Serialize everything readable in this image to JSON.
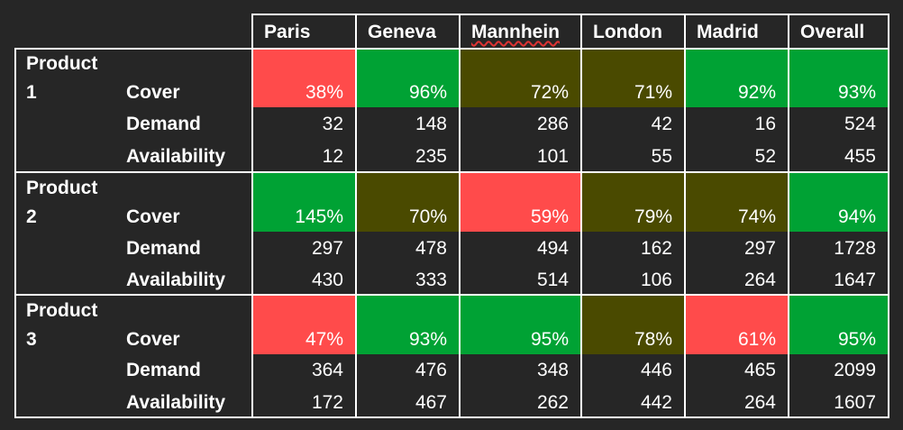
{
  "header": [
    "Paris",
    "Geneva",
    "Mannhein",
    "London",
    "Madrid",
    "Overall"
  ],
  "colors": {
    "red": "#ff4b4b",
    "green": "#00a234",
    "olive": "#4a4a00",
    "dark": "#262626"
  },
  "groups": [
    {
      "product_line1": "Product",
      "product_line2": "1",
      "metrics": [
        {
          "label": "Cover",
          "values": [
            "38%",
            "96%",
            "72%",
            "71%",
            "92%",
            "93%"
          ],
          "status": [
            "red",
            "green",
            "olive",
            "olive",
            "green",
            "green"
          ]
        },
        {
          "label": "Demand",
          "values": [
            "32",
            "148",
            "286",
            "42",
            "16",
            "524"
          ]
        },
        {
          "label": "Availability",
          "values": [
            "12",
            "235",
            "101",
            "55",
            "52",
            "455"
          ]
        }
      ]
    },
    {
      "product_line1": "Product",
      "product_line2": "2",
      "metrics": [
        {
          "label": "Cover",
          "values": [
            "145%",
            "70%",
            "59%",
            "79%",
            "74%",
            "94%"
          ],
          "status": [
            "green",
            "olive",
            "red",
            "olive",
            "olive",
            "green"
          ]
        },
        {
          "label": "Demand",
          "values": [
            "297",
            "478",
            "494",
            "162",
            "297",
            "1728"
          ]
        },
        {
          "label": "Availability",
          "values": [
            "430",
            "333",
            "514",
            "106",
            "264",
            "1647"
          ]
        }
      ]
    },
    {
      "product_line1": "Product",
      "product_line2": "3",
      "metrics": [
        {
          "label": "Cover",
          "values": [
            "47%",
            "93%",
            "95%",
            "78%",
            "61%",
            "95%"
          ],
          "status": [
            "red",
            "green",
            "green",
            "olive",
            "red",
            "green"
          ]
        },
        {
          "label": "Demand",
          "values": [
            "364",
            "476",
            "348",
            "446",
            "465",
            "2099"
          ]
        },
        {
          "label": "Availability",
          "values": [
            "172",
            "467",
            "262",
            "442",
            "264",
            "1607"
          ]
        }
      ]
    }
  ]
}
